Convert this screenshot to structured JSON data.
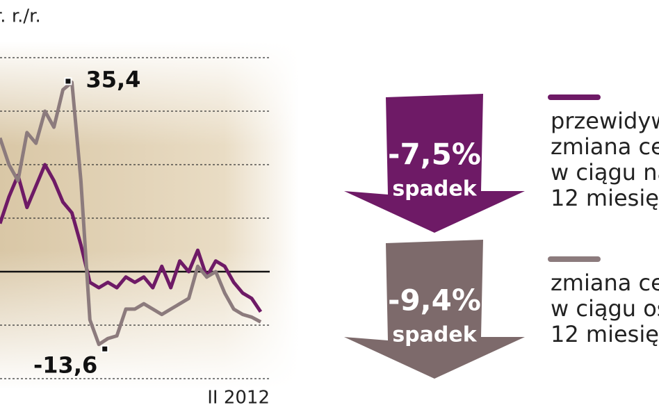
{
  "chart_data": {
    "type": "line",
    "unit_label": "r. r./r.",
    "categories": [
      null,
      null,
      null,
      null,
      null,
      null,
      null,
      null,
      null,
      null,
      null,
      null,
      null,
      null,
      null,
      null,
      null,
      null,
      null,
      null,
      null,
      null,
      null,
      null,
      null,
      null,
      null,
      null,
      null,
      "II 2012"
    ],
    "series": [
      {
        "name": "przewidywana",
        "legend_lines": [
          "przewidyw",
          "zmiana ce",
          "w ciągu na",
          "12 miesię"
        ],
        "color": "#6e1a66",
        "values": [
          9,
          14,
          18,
          12,
          16,
          20,
          17,
          13,
          11,
          5,
          -2,
          -3,
          -2,
          -3,
          -1,
          -2,
          -1,
          -3,
          1,
          -3,
          2,
          0,
          4,
          -1,
          2,
          1,
          -2,
          -4,
          -5,
          -7.5
        ]
      },
      {
        "name": "zmiana",
        "legend_lines": [
          "zmiana ce",
          "w ciągu os",
          "12 miesię"
        ],
        "color": "#8c7b7d",
        "values": [
          25,
          20,
          17,
          26,
          24,
          30,
          27,
          34,
          35.4,
          17,
          -9,
          -13.6,
          -12.5,
          -12,
          -7,
          -7,
          -6,
          -7,
          -8,
          -7,
          -6,
          -5,
          1,
          -1,
          0,
          -4,
          -7,
          -8,
          -8.5,
          -9.4
        ]
      }
    ],
    "annotations": [
      {
        "series": 1,
        "index": 8,
        "text": "35,4"
      },
      {
        "series": 1,
        "index": 11,
        "text": "-13,6"
      }
    ],
    "arrows": [
      {
        "big": "-7,5%",
        "small": "spadek",
        "color": "#6e1a66"
      },
      {
        "big": "-9,4%",
        "small": "spadek",
        "color": "#7d6a6b"
      }
    ],
    "ylim": [
      -20,
      40
    ],
    "yticks": [
      -20,
      -10,
      0,
      10,
      20,
      30,
      40
    ],
    "grid": true
  }
}
